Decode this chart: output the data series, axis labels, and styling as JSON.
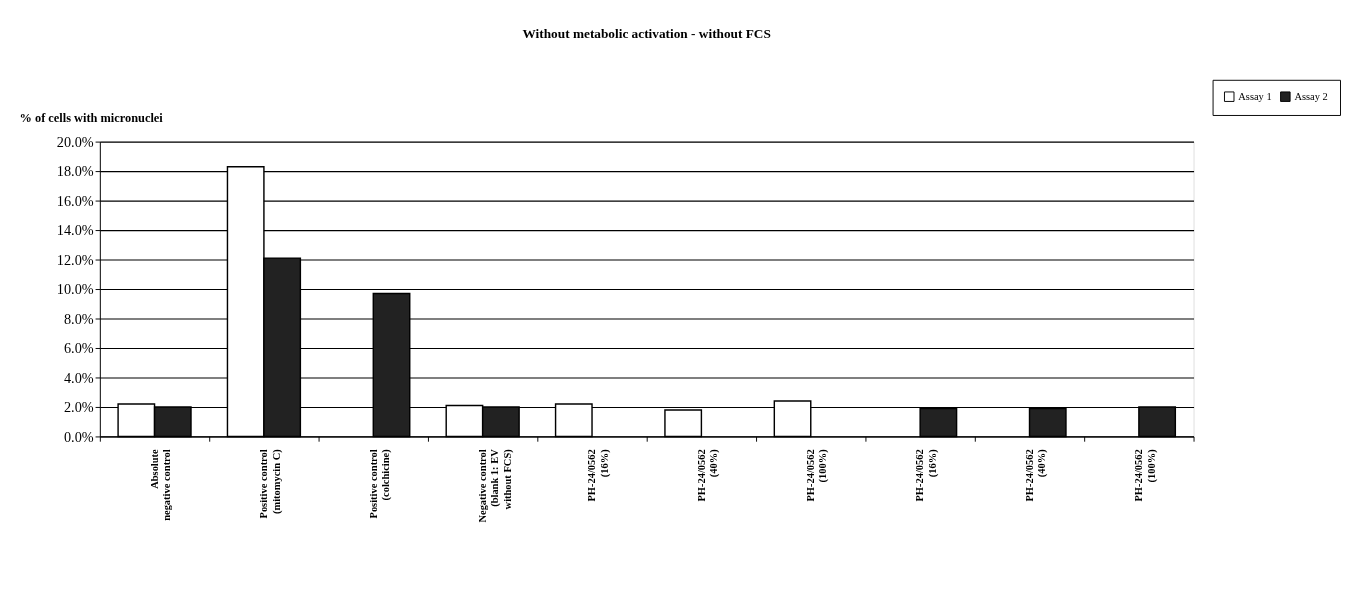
{
  "chart_data": {
    "type": "bar",
    "title": "Without metabolic activation - without FCS",
    "ylabel": "% of cells with micronuclei",
    "categories": [
      "Absolute\nnegative control",
      "Positive control\n(mitomycin C)",
      "Positive control\n(colchicine)",
      "Negative control\n(blank 1: EV\nwithout FCS)",
      "PH-24/0562\n(16%)",
      "PH-24/0562\n(40%)",
      "PH-24/0562\n(100%)",
      "PH-24/0562\n(16%)",
      "PH-24/0562\n(40%)",
      "PH-24/0562\n(100%)"
    ],
    "series": [
      {
        "name": "Assay 1",
        "color": "#ffffff",
        "values": [
          2.2,
          18.3,
          null,
          2.1,
          2.2,
          1.8,
          2.4,
          null,
          null,
          null
        ]
      },
      {
        "name": "Assay 2",
        "color": "#222222",
        "values": [
          2.0,
          12.1,
          9.7,
          2.0,
          null,
          null,
          null,
          1.9,
          1.9,
          2.0
        ]
      }
    ],
    "ylim": [
      0,
      20
    ],
    "yticks": [
      {
        "value": 0,
        "label": "0.0%"
      },
      {
        "value": 2,
        "label": "2.0%"
      },
      {
        "value": 4,
        "label": "4.0%"
      },
      {
        "value": 6,
        "label": "6.0%"
      },
      {
        "value": 8,
        "label": "8.0%"
      },
      {
        "value": 10,
        "label": "10.0%"
      },
      {
        "value": 12,
        "label": "12.0%"
      },
      {
        "value": 14,
        "label": "14.0%"
      },
      {
        "value": 16,
        "label": "16.0%"
      },
      {
        "value": 18,
        "label": "18.0%"
      },
      {
        "value": 20,
        "label": "20.0%"
      }
    ],
    "grid": "y",
    "legend": "top right"
  }
}
